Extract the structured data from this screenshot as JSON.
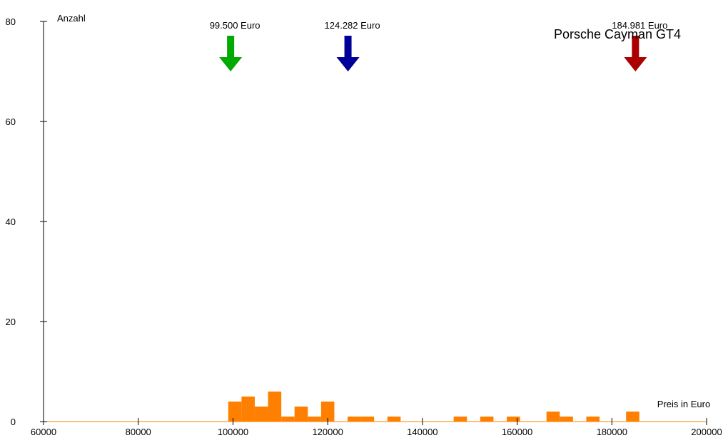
{
  "chart_data": {
    "type": "bar",
    "title": "Porsche Cayman GT4",
    "xlabel": "Preis in Euro",
    "ylabel": "Anzahl",
    "xlim": [
      60000,
      200000
    ],
    "ylim": [
      0,
      80
    ],
    "x_ticks": [
      60000,
      80000,
      100000,
      120000,
      140000,
      160000,
      180000,
      200000
    ],
    "y_ticks": [
      0,
      20,
      40,
      60,
      80
    ],
    "bin_width": 2800,
    "bins": [
      {
        "start": 99000,
        "count": 4
      },
      {
        "start": 101800,
        "count": 5
      },
      {
        "start": 104600,
        "count": 3
      },
      {
        "start": 107400,
        "count": 6
      },
      {
        "start": 110200,
        "count": 1
      },
      {
        "start": 113000,
        "count": 3
      },
      {
        "start": 115800,
        "count": 1
      },
      {
        "start": 118600,
        "count": 4
      },
      {
        "start": 124200,
        "count": 1
      },
      {
        "start": 127000,
        "count": 1
      },
      {
        "start": 132600,
        "count": 1
      },
      {
        "start": 146600,
        "count": 1
      },
      {
        "start": 152200,
        "count": 1
      },
      {
        "start": 157800,
        "count": 1
      },
      {
        "start": 166200,
        "count": 2
      },
      {
        "start": 169000,
        "count": 1
      },
      {
        "start": 174600,
        "count": 1
      },
      {
        "start": 183000,
        "count": 2
      }
    ],
    "bar_color": "#ff8000",
    "markers": [
      {
        "value": 99500,
        "label": "99.500 Euro",
        "color": "#00aa00"
      },
      {
        "value": 124282,
        "label": "124.282 Euro",
        "color": "#000099"
      },
      {
        "value": 184981,
        "label": "184.981 Euro",
        "color": "#aa0000"
      }
    ]
  }
}
